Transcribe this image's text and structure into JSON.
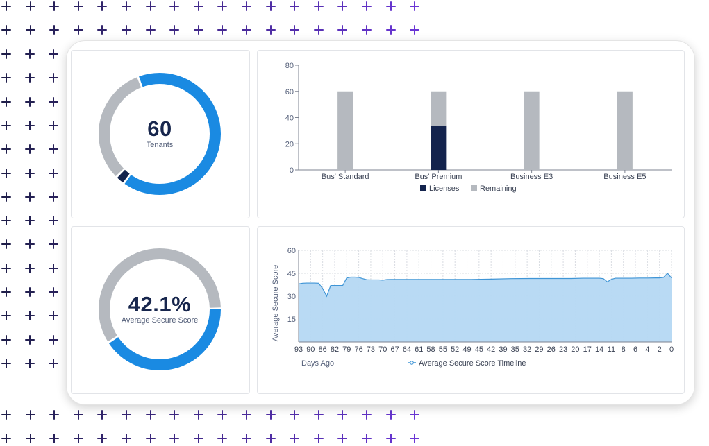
{
  "colors": {
    "primary_blue": "#1a8ae2",
    "navy": "#13234d",
    "gray": "#b5b9bf",
    "area_fill": "#b5d8f3",
    "area_line": "#3f95d6",
    "plus": "#6a35d6"
  },
  "tenants_card": {
    "value": "60",
    "label": "Tenants",
    "segments": [
      {
        "name": "blue",
        "fraction": 0.3472
      },
      {
        "name": "gap",
        "fraction": 0.0056
      },
      {
        "name": "navy",
        "fraction": 0.0194
      },
      {
        "name": "gap",
        "fraction": 0.0056
      },
      {
        "name": "gray",
        "fraction": 0.3111
      },
      {
        "name": "gap",
        "fraction": 0.0056
      },
      {
        "name": "blue",
        "fraction": 0.3055
      }
    ]
  },
  "score_card": {
    "value": "42.1%",
    "label": "Average Secure Score",
    "segments": [
      {
        "name": "blue",
        "fraction": 0.4056
      },
      {
        "name": "gap",
        "fraction": 0.0056
      },
      {
        "name": "gray",
        "fraction": 0.5833
      },
      {
        "name": "gap",
        "fraction": 0.0055
      }
    ]
  },
  "chart_data": [
    {
      "type": "bar",
      "stacked": true,
      "title": "",
      "categories": [
        "Bus' Standard",
        "Bus' Premium",
        "Business E3",
        "Business E5"
      ],
      "series": [
        {
          "name": "Licenses",
          "color": "#13234d",
          "values": [
            0,
            34,
            0,
            0
          ]
        },
        {
          "name": "Remaining",
          "color": "#b5b9bf",
          "values": [
            60,
            26,
            60,
            60
          ]
        }
      ],
      "ylim": [
        0,
        80
      ],
      "yticks": [
        0,
        20,
        40,
        60,
        80
      ],
      "xlabel": "",
      "ylabel": "",
      "legend": "bottom-center"
    },
    {
      "type": "area",
      "title": "",
      "xlabel": "Days Ago",
      "ylabel": "Average Secure Score",
      "ylim": [
        0,
        60
      ],
      "yticks": [
        15,
        30,
        45,
        60
      ],
      "xticks": [
        "93",
        "90",
        "86",
        "82",
        "79",
        "76",
        "73",
        "70",
        "67",
        "64",
        "61",
        "58",
        "55",
        "52",
        "49",
        "45",
        "42",
        "39",
        "35",
        "32",
        "29",
        "26",
        "23",
        "20",
        "17",
        "14",
        "11",
        "8",
        "6",
        "4",
        "2",
        "0"
      ],
      "x_range": [
        93,
        0
      ],
      "grid": true,
      "legend": "Average Secure Score Timeline",
      "x": [
        93,
        92,
        91,
        90,
        89,
        88,
        87,
        86,
        85,
        84,
        83,
        82,
        81,
        80,
        79,
        78,
        77,
        76,
        75,
        74,
        73,
        72,
        71,
        70,
        68,
        65,
        60,
        55,
        50,
        45,
        40,
        35,
        30,
        25,
        22,
        20,
        18,
        17,
        16,
        15,
        14,
        12,
        10,
        8,
        6,
        4,
        3,
        2,
        1,
        0
      ],
      "y": [
        38,
        38.5,
        38.6,
        38.6,
        38.6,
        38.5,
        35,
        30,
        37,
        37,
        37,
        37,
        42,
        42.5,
        42.5,
        42.3,
        41.5,
        40.8,
        40.7,
        40.7,
        40.7,
        40.5,
        40.9,
        41,
        41,
        41,
        41,
        41,
        41,
        41.2,
        41.5,
        41.6,
        41.6,
        41.6,
        41.8,
        41.8,
        41.8,
        41.5,
        39.4,
        41,
        41.8,
        41.8,
        41.8,
        41.9,
        41.9,
        42,
        42,
        42.3,
        45,
        42
      ]
    }
  ]
}
